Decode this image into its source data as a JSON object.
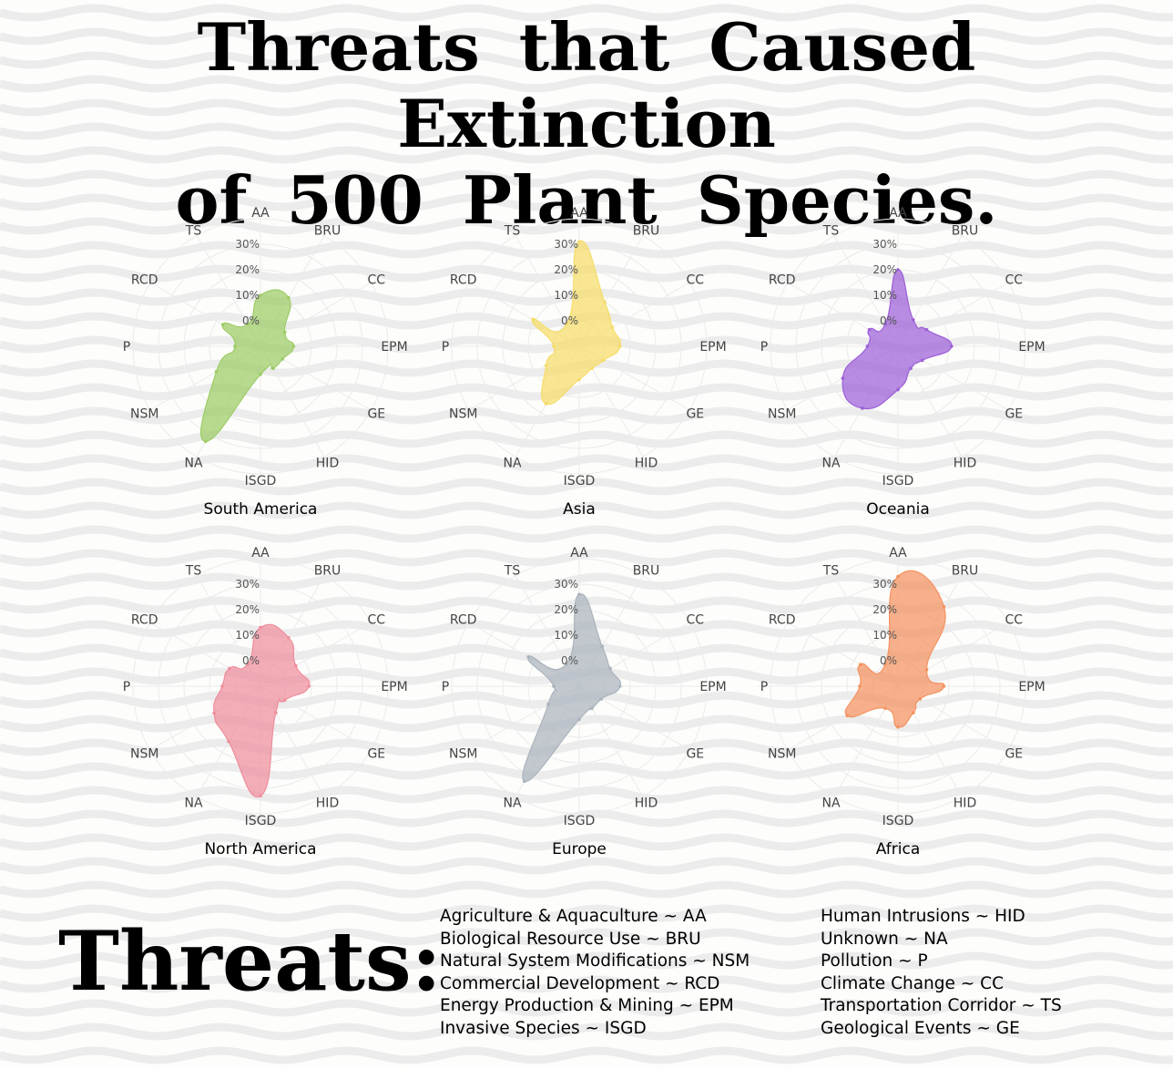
{
  "title_line1": "Threats that Caused Extinction",
  "title_line2": "of 500 Plant Species.",
  "threats_heading": "Threats:",
  "legend_left": [
    "Agriculture & Aquaculture ~ AA",
    "Biological Resource Use ~ BRU",
    "Natural System Modifications ~ NSM",
    "Commercial Development ~ RCD",
    "Energy Production & Mining ~ EPM",
    "Invasive Species ~ ISGD"
  ],
  "legend_right": [
    "Human Intrusions ~ HID",
    "Unknown ~ NA",
    "Pollution ~ P",
    "Climate Change ~ CC",
    "Transportation Corridor ~ TS",
    "Geological Events ~ GE"
  ],
  "chart_data": [
    {
      "type": "radar",
      "title": "South America",
      "color": "#9ccc65",
      "categories": [
        "AA",
        "BRU",
        "CC",
        "EPM",
        "GE",
        "HID",
        "ISGD",
        "NA",
        "NSM",
        "P",
        "RCD",
        "TS"
      ],
      "radial_ticks": [
        "0%",
        "10%",
        "20%",
        "30%"
      ],
      "rlim": [
        -10,
        30
      ],
      "values": [
        10,
        12,
        1,
        3,
        0,
        0,
        1,
        33,
        10,
        0,
        7,
        0
      ]
    },
    {
      "type": "radar",
      "title": "Asia",
      "color": "#f5dc6a",
      "categories": [
        "AA",
        "BRU",
        "CC",
        "EPM",
        "GE",
        "HID",
        "ISGD",
        "NA",
        "NSM",
        "P",
        "RCD",
        "TS"
      ],
      "radial_ticks": [
        "0%",
        "10%",
        "20%",
        "30%"
      ],
      "rlim": [
        -10,
        30
      ],
      "values": [
        31,
        10,
        5,
        6,
        1,
        0,
        3,
        16,
        5,
        0,
        11,
        0
      ]
    },
    {
      "type": "radar",
      "title": "Oceania",
      "color": "#9c5fd8",
      "categories": [
        "AA",
        "BRU",
        "CC",
        "EPM",
        "GE",
        "HID",
        "ISGD",
        "NA",
        "NSM",
        "P",
        "RCD",
        "TS"
      ],
      "radial_ticks": [
        "0%",
        "10%",
        "20%",
        "30%"
      ],
      "rlim": [
        -10,
        30
      ],
      "values": [
        20,
        2,
        3,
        11,
        1,
        0,
        7,
        18,
        15,
        2,
        3,
        0
      ]
    },
    {
      "type": "radar",
      "title": "North America",
      "color": "#ee8e9c",
      "categories": [
        "AA",
        "BRU",
        "CC",
        "EPM",
        "GE",
        "HID",
        "ISGD",
        "NA",
        "NSM",
        "P",
        "RCD",
        "TS"
      ],
      "radial_ticks": [
        "0%",
        "10%",
        "20%",
        "30%"
      ],
      "rlim": [
        -10,
        30
      ],
      "values": [
        13,
        12,
        6,
        9,
        1,
        2,
        33,
        15,
        11,
        5,
        4,
        0
      ]
    },
    {
      "type": "radar",
      "title": "Europe",
      "color": "#aab3bc",
      "categories": [
        "AA",
        "BRU",
        "CC",
        "EPM",
        "GE",
        "HID",
        "ISGD",
        "NA",
        "NSM",
        "P",
        "RCD",
        "TS"
      ],
      "radial_ticks": [
        "0%",
        "10%",
        "20%",
        "30%"
      ],
      "rlim": [
        -10,
        30
      ],
      "values": [
        26,
        8,
        4,
        6,
        0,
        0,
        3,
        33,
        4,
        0,
        13,
        0
      ]
    },
    {
      "type": "radar",
      "title": "Africa",
      "color": "#f4925f",
      "categories": [
        "AA",
        "BRU",
        "CC",
        "EPM",
        "GE",
        "HID",
        "ISGD",
        "NA",
        "NSM",
        "P",
        "RCD",
        "TS"
      ],
      "radial_ticks": [
        "0%",
        "10%",
        "20%",
        "30%"
      ],
      "rlim": [
        -10,
        30
      ],
      "values": [
        33,
        26,
        3,
        8,
        0,
        2,
        6,
        0,
        13,
        5,
        7,
        0
      ]
    }
  ]
}
